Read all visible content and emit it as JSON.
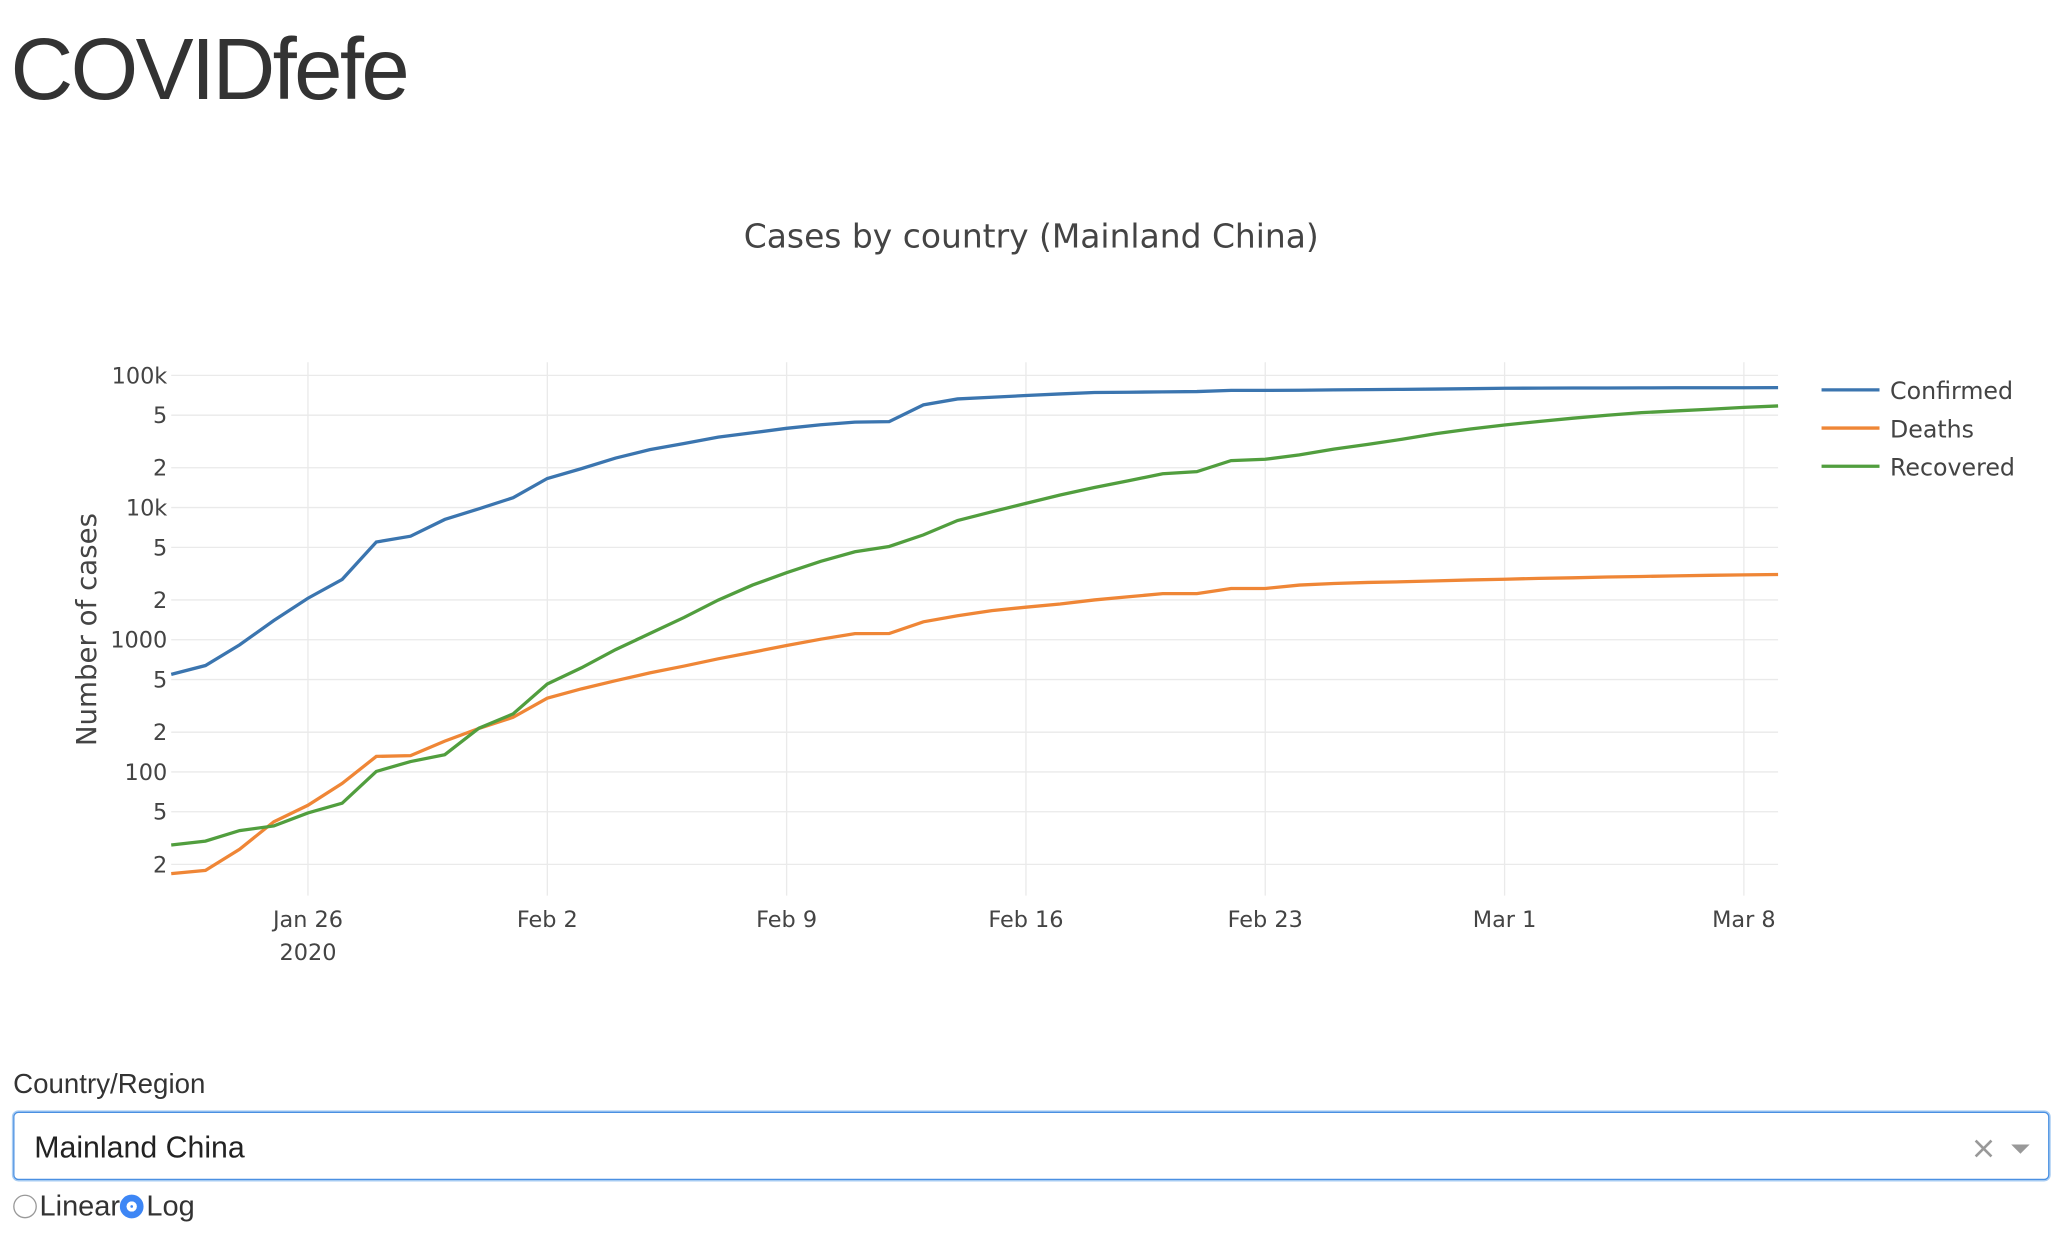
{
  "header": {
    "title": "COVIDfefe"
  },
  "chart_data": {
    "type": "line",
    "title": "Cases by country (Mainland China)",
    "y_label": "Number of cases",
    "x_year_label": "2020",
    "log_y": true,
    "grid": true,
    "legend": "right",
    "x": [
      "2020-01-22",
      "2020-01-23",
      "2020-01-24",
      "2020-01-25",
      "2020-01-26",
      "2020-01-27",
      "2020-01-28",
      "2020-01-29",
      "2020-01-30",
      "2020-01-31",
      "2020-02-01",
      "2020-02-02",
      "2020-02-03",
      "2020-02-04",
      "2020-02-05",
      "2020-02-06",
      "2020-02-07",
      "2020-02-08",
      "2020-02-09",
      "2020-02-10",
      "2020-02-11",
      "2020-02-12",
      "2020-02-13",
      "2020-02-14",
      "2020-02-15",
      "2020-02-16",
      "2020-02-17",
      "2020-02-18",
      "2020-02-19",
      "2020-02-20",
      "2020-02-21",
      "2020-02-22",
      "2020-02-23",
      "2020-02-24",
      "2020-02-25",
      "2020-02-26",
      "2020-02-27",
      "2020-02-28",
      "2020-02-29",
      "2020-03-01",
      "2020-03-02",
      "2020-03-03",
      "2020-03-04",
      "2020-03-05",
      "2020-03-06",
      "2020-03-07",
      "2020-03-08",
      "2020-03-09"
    ],
    "xlim": [
      "2020-01-22",
      "2020-03-09"
    ],
    "xticks": [
      {
        "value": "2020-01-26",
        "label": "Jan 26"
      },
      {
        "value": "2020-02-02",
        "label": "Feb 2"
      },
      {
        "value": "2020-02-09",
        "label": "Feb 9"
      },
      {
        "value": "2020-02-16",
        "label": "Feb 16"
      },
      {
        "value": "2020-02-23",
        "label": "Feb 23"
      },
      {
        "value": "2020-03-01",
        "label": "Mar 1"
      },
      {
        "value": "2020-03-08",
        "label": "Mar 8"
      }
    ],
    "ylim": [
      11.6,
      125800
    ],
    "yticks": [
      {
        "value": 20,
        "label": "2"
      },
      {
        "value": 50,
        "label": "5"
      },
      100,
      {
        "value": 200,
        "label": "2"
      },
      {
        "value": 500,
        "label": "5"
      },
      1000,
      {
        "value": 2000,
        "label": "2"
      },
      {
        "value": 5000,
        "label": "5"
      },
      {
        "value": 10000,
        "label": "10k"
      },
      {
        "value": 20000,
        "label": "2"
      },
      {
        "value": 50000,
        "label": "5"
      },
      {
        "value": 100000,
        "label": "100k"
      }
    ],
    "series": [
      {
        "name": "Confirmed",
        "color": "#3b75af",
        "values": [
          547,
          639,
          916,
          1399,
          2062,
          2863,
          5494,
          6070,
          8124,
          9783,
          11871,
          16607,
          19693,
          23680,
          27409,
          30553,
          34075,
          36778,
          39790,
          42306,
          44327,
          44699,
          59832,
          66292,
          68347,
          70446,
          72364,
          74139,
          74546,
          74999,
          75472,
          76922,
          76938,
          77152,
          77660,
          78065,
          78498,
          78824,
          79251,
          79826,
          80026,
          80151,
          80271,
          80422,
          80573,
          80652,
          80699,
          80735
        ]
      },
      {
        "name": "Deaths",
        "color": "#ef8636",
        "values": [
          17,
          18,
          26,
          42,
          56,
          82,
          131,
          133,
          171,
          213,
          259,
          361,
          425,
          490,
          562,
          632,
          717,
          804,
          904,
          1011,
          1111,
          1116,
          1368,
          1520,
          1662,
          1765,
          1863,
          2002,
          2114,
          2236,
          2236,
          2441,
          2443,
          2593,
          2663,
          2715,
          2744,
          2788,
          2835,
          2870,
          2912,
          2945,
          2981,
          3013,
          3042,
          3070,
          3097,
          3119
        ]
      },
      {
        "name": "Recovered",
        "color": "#519e3e",
        "values": [
          28,
          30,
          36,
          39,
          49,
          58,
          101,
          120,
          135,
          214,
          275,
          463,
          614,
          843,
          1115,
          1476,
          1998,
          2595,
          3218,
          3917,
          4635,
          5079,
          6213,
          7973,
          9294,
          10748,
          12455,
          14199,
          15952,
          18002,
          18693,
          22687,
          23170,
          24990,
          27650,
          30053,
          32898,
          36291,
          39279,
          42118,
          44810,
          47404,
          49955,
          52240,
          53888,
          55478,
          57320,
          58735
        ]
      }
    ]
  },
  "controls": {
    "dropdown_label": "Country/Region",
    "dropdown_value": "Mainland China",
    "radio_options": [
      "Linear",
      "Log"
    ],
    "radio_selected": "Log"
  }
}
